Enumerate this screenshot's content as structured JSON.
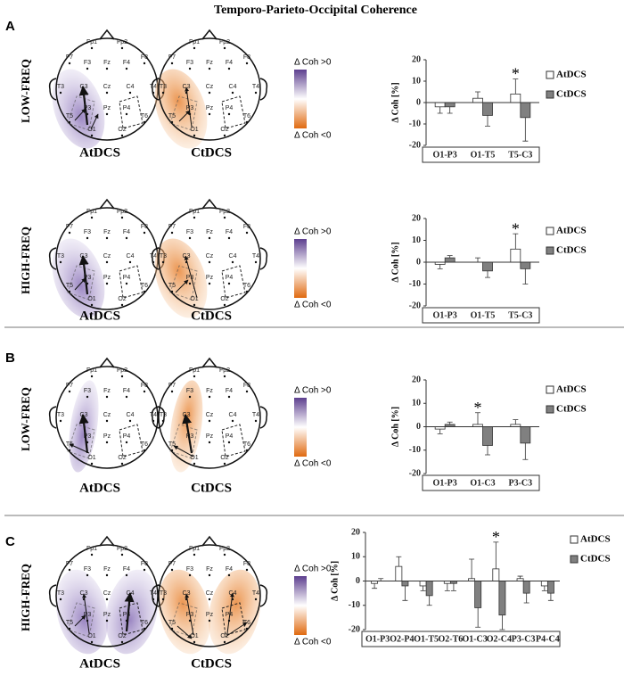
{
  "title": "Temporo-Parieto-Occipital Coherence",
  "panel_labels": [
    "A",
    "B",
    "C"
  ],
  "rows": [
    {
      "frequency": "LOW-FREQ",
      "conditions": [
        "AtDCS",
        "CtDCS"
      ]
    },
    {
      "frequency": "HIGH-FREQ",
      "conditions": [
        "AtDCS",
        "CtDCS"
      ]
    },
    {
      "frequency": "LOW-FREQ",
      "conditions": [
        "AtDCS",
        "CtDCS"
      ]
    },
    {
      "frequency": "HIGH-FREQ",
      "conditions": [
        "AtDCS",
        "CtDCS"
      ]
    }
  ],
  "electrodes": [
    "Fp1",
    "Fp2",
    "F7",
    "F3",
    "Fz",
    "F4",
    "F8",
    "T3",
    "C3",
    "Cz",
    "C4",
    "T4",
    "T5",
    "P3",
    "Pz",
    "P4",
    "T6",
    "O1",
    "O2"
  ],
  "colorbar": {
    "positive": "Δ Coh >0",
    "negative": "Δ Coh <0"
  },
  "chart_data": [
    {
      "type": "bar",
      "y_label": "Δ Coh [%]",
      "categories": [
        "O1-P3",
        "O1-T5",
        "T5-C3"
      ],
      "ylim": [
        -20,
        20
      ],
      "yticks": [
        -20,
        -10,
        0,
        10,
        20
      ],
      "series": [
        {
          "name": "AtDCS",
          "color": "#ffffff",
          "values": [
            -2,
            2,
            4
          ],
          "errors": [
            3,
            3,
            7
          ]
        },
        {
          "name": "CtDCS",
          "color": "#808080",
          "values": [
            -2,
            -6,
            -7
          ],
          "errors": [
            3,
            5,
            11
          ]
        }
      ],
      "annotations": [
        {
          "text": "*",
          "category": "T5-C3"
        }
      ]
    },
    {
      "type": "bar",
      "y_label": "Δ Coh [%]",
      "categories": [
        "O1-P3",
        "O1-T5",
        "T5-C3"
      ],
      "ylim": [
        -20,
        20
      ],
      "yticks": [
        -20,
        -10,
        0,
        10,
        20
      ],
      "series": [
        {
          "name": "AtDCS",
          "color": "#ffffff",
          "values": [
            -1,
            0,
            6
          ],
          "errors": [
            2,
            2,
            7
          ]
        },
        {
          "name": "CtDCS",
          "color": "#808080",
          "values": [
            2,
            -4,
            -3
          ],
          "errors": [
            1,
            3,
            7
          ]
        }
      ],
      "annotations": [
        {
          "text": "*",
          "category": "T5-C3"
        }
      ]
    },
    {
      "type": "bar",
      "y_label": "Δ Coh [%]",
      "categories": [
        "O1-P3",
        "O1-C3",
        "P3-C3"
      ],
      "ylim": [
        -20,
        20
      ],
      "yticks": [
        -20,
        -10,
        0,
        10,
        20
      ],
      "series": [
        {
          "name": "AtDCS",
          "color": "#ffffff",
          "values": [
            -1,
            1,
            1
          ],
          "errors": [
            2,
            5,
            2
          ]
        },
        {
          "name": "CtDCS",
          "color": "#808080",
          "values": [
            1,
            -8,
            -7
          ],
          "errors": [
            1,
            4,
            7
          ]
        }
      ],
      "annotations": [
        {
          "text": "*",
          "category": "O1-C3"
        }
      ]
    },
    {
      "type": "bar",
      "y_label": "Δ Coh [%]",
      "categories": [
        "O1-P3",
        "O2-P4",
        "O1-T5",
        "O2-T6",
        "O1-C3",
        "O2-C4",
        "P3-C3",
        "P4-C4"
      ],
      "ylim": [
        -20,
        20
      ],
      "yticks": [
        -20,
        -10,
        0,
        10,
        20
      ],
      "series": [
        {
          "name": "AtDCS",
          "color": "#ffffff",
          "values": [
            -1,
            6,
            -2,
            -1,
            1,
            5,
            1,
            -2
          ],
          "errors": [
            2,
            4,
            2,
            3,
            8,
            11,
            1,
            2
          ]
        },
        {
          "name": "CtDCS",
          "color": "#808080",
          "values": [
            0,
            -2,
            -6,
            -1,
            -11,
            -14,
            -5,
            -5
          ],
          "errors": [
            1,
            6,
            4,
            3,
            8,
            6,
            4,
            3
          ]
        }
      ],
      "annotations": [
        {
          "text": "*",
          "category": "O2-C4"
        }
      ]
    }
  ]
}
